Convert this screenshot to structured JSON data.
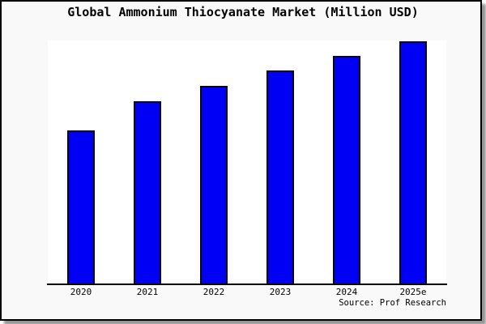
{
  "title": "Global Ammonium Thiocyanate Market (Million USD)",
  "source": "Source: Prof Research",
  "colors": {
    "canvas_background": "#f9f9f9",
    "plot_background": "#ffffff",
    "frame_border": "#000000",
    "frame_shadow": "#969696",
    "bar_fill": "#0000f5",
    "bar_border": "#000000",
    "axis_line": "#000000",
    "text": "#000000"
  },
  "chart_data": {
    "type": "bar",
    "title": "Global Ammonium Thiocyanate Market (Million USD)",
    "categories": [
      "2020",
      "2021",
      "2022",
      "2023",
      "2024",
      "2025e"
    ],
    "values": [
      63.2,
      75.3,
      81.6,
      88.0,
      94.0,
      100.0
    ],
    "values_unit": "relative-percent-of-tallest-bar",
    "values_note": "No y-axis ticks or data labels are shown in the image; values are estimated from bar pixel heights, normalized so the 2025e bar = 100.",
    "xlabel": "",
    "ylabel": "",
    "ylim": [
      0,
      100.5
    ],
    "grid": false,
    "legend": false,
    "bar_color": "#0000f5",
    "bar_border_color": "#000000",
    "source_note": "Source: Prof Research"
  }
}
